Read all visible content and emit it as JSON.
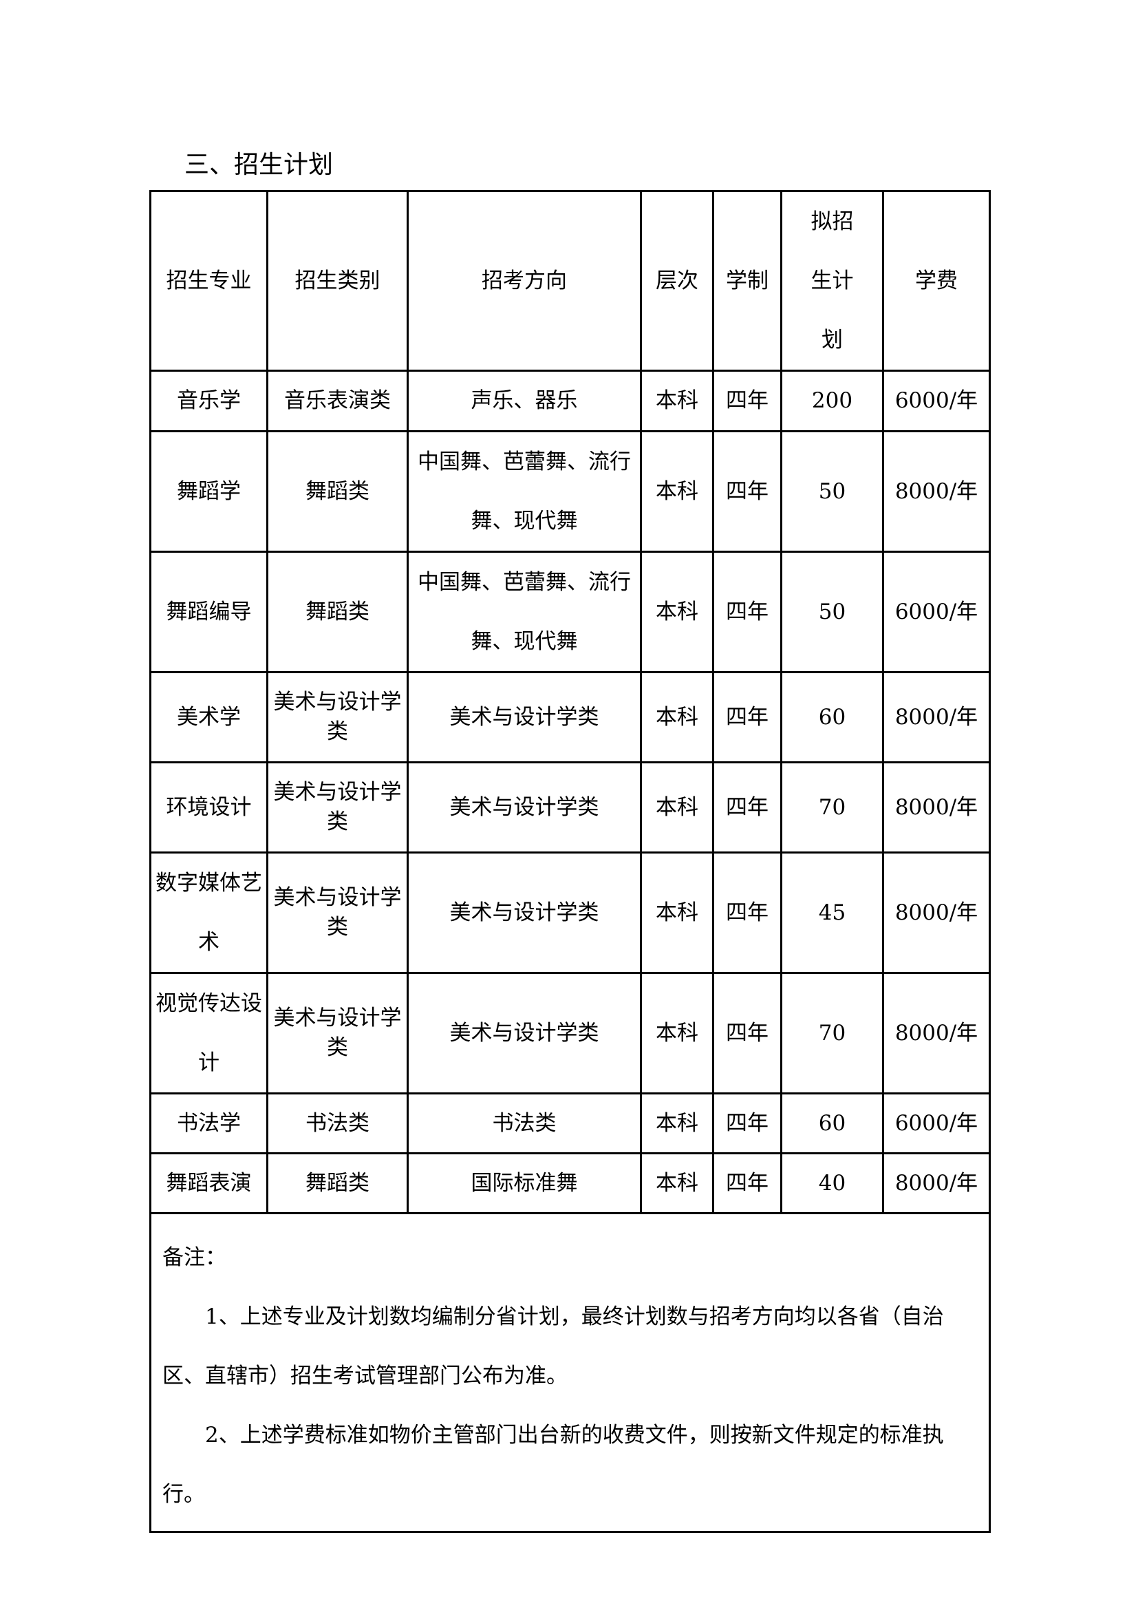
{
  "title": "三、招生计划",
  "table": {
    "headers": [
      "招生专业",
      "招生类别",
      "招考方向",
      "层次",
      "学制",
      "拟招生计划",
      "学费"
    ],
    "rows": [
      [
        "音乐学",
        "音乐表演类",
        "声乐、器乐",
        "本科",
        "四年",
        "200",
        "6000/年"
      ],
      [
        "舞蹈学",
        "舞蹈类",
        "中国舞、芭蕾舞、流行舞、现代舞",
        "本科",
        "四年",
        "50",
        "8000/年"
      ],
      [
        "舞蹈编导",
        "舞蹈类",
        "中国舞、芭蕾舞、流行舞、现代舞",
        "本科",
        "四年",
        "50",
        "6000/年"
      ],
      [
        "美术学",
        "美术与设计学类",
        "美术与设计学类",
        "本科",
        "四年",
        "60",
        "8000/年"
      ],
      [
        "环境设计",
        "美术与设计学类",
        "美术与设计学类",
        "本科",
        "四年",
        "70",
        "8000/年"
      ],
      [
        "数字媒体艺术",
        "美术与设计学类",
        "美术与设计学类",
        "本科",
        "四年",
        "45",
        "8000/年"
      ],
      [
        "视觉传达设计",
        "美术与设计学类",
        "美术与设计学类",
        "本科",
        "四年",
        "70",
        "8000/年"
      ],
      [
        "书法学",
        "书法类",
        "书法类",
        "本科",
        "四年",
        "60",
        "6000/年"
      ],
      [
        "舞蹈表演",
        "舞蹈类",
        "国际标准舞",
        "本科",
        "四年",
        "40",
        "8000/年"
      ]
    ]
  },
  "notes": {
    "label": "备注：",
    "items": [
      "1、上述专业及计划数均编制分省计划，最终计划数与招考方向均以各省（自治区、直辖市）招生考试管理部门公布为准。",
      "2、上述学费标准如物价主管部门出台新的收费文件，则按新文件规定的标准执行。"
    ]
  }
}
